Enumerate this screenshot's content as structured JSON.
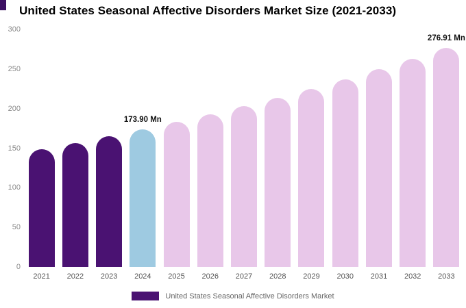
{
  "chart_data": {
    "type": "bar",
    "title": "United States Seasonal Affective Disorders Market Size (2021-2033)",
    "categories": [
      "2021",
      "2022",
      "2023",
      "2024",
      "2025",
      "2026",
      "2027",
      "2028",
      "2029",
      "2030",
      "2031",
      "2032",
      "2033"
    ],
    "values": [
      149.0,
      156.9,
      165.2,
      173.9,
      183.1,
      192.8,
      203.0,
      213.8,
      225.1,
      237.0,
      249.6,
      262.9,
      276.91
    ],
    "unit": "Mn",
    "ylim": [
      0,
      300
    ],
    "yticks": [
      0,
      50,
      100,
      150,
      200,
      250,
      300
    ],
    "grid": false,
    "xlabel": "",
    "ylabel": "",
    "bar_colors": [
      "#4a1272",
      "#4a1272",
      "#4a1272",
      "#9ecae1",
      "#e8c7e9",
      "#e8c7e9",
      "#e8c7e9",
      "#e8c7e9",
      "#e8c7e9",
      "#e8c7e9",
      "#e8c7e9",
      "#e8c7e9",
      "#e8c7e9"
    ],
    "colors": {
      "dark_purple": "#4a1272",
      "light_blue": "#9ecae1",
      "pink": "#e8c7e9"
    },
    "annotations": [
      {
        "index": 3,
        "category": "2024",
        "text": "173.90 Mn"
      },
      {
        "index": 12,
        "category": "2033",
        "text": "276.91 Mn"
      }
    ],
    "legend": {
      "position": "bottom",
      "label": "United States Seasonal Affective Disorders Market",
      "swatch_color": "#4a1272"
    }
  }
}
